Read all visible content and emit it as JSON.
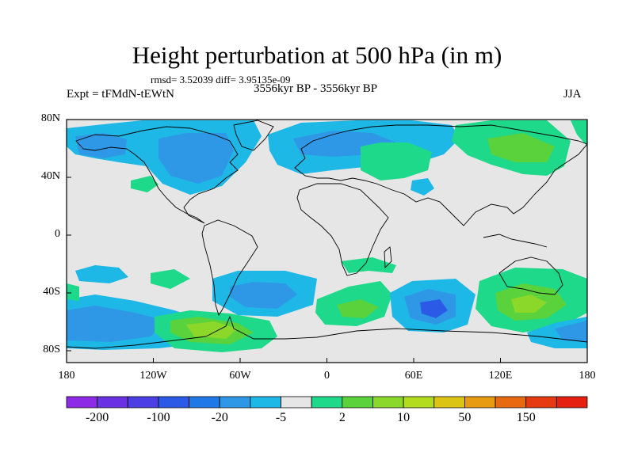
{
  "title": "Height perturbation at 500 hPa (in m)",
  "stats": "rmsd= 3.52039 diff= 3.95135e-09",
  "experiment": "Expt = tFMdN-tEWtN",
  "period": "3556kyr BP - 3556kyr BP",
  "season": "JJA",
  "lat_ticks": [
    "80N",
    "40N",
    "0",
    "40S",
    "80S"
  ],
  "lon_ticks": [
    "180",
    "120W",
    "60W",
    "0",
    "60E",
    "120E",
    "180"
  ],
  "colorbar": {
    "colors": [
      "#8c2ae6",
      "#6a30e4",
      "#4a3ee4",
      "#2b5be6",
      "#1f78e8",
      "#2f98e6",
      "#1eb8e6",
      "#e6e6e6",
      "#1ed98a",
      "#5ad23c",
      "#8cd82a",
      "#b4dc1e",
      "#dcc414",
      "#e89a10",
      "#e86a10",
      "#e63b10",
      "#e62010"
    ],
    "labels": [
      "-200",
      "-100",
      "-20",
      "-5",
      "2",
      "10",
      "50",
      "150"
    ]
  },
  "palette": {
    "background": "#e6e6e6",
    "strong_negative": "#1f78e8",
    "negative": "#2f98e6",
    "weak_negative": "#1eb8e6",
    "weak_positive": "#1ed98a",
    "positive": "#5ad23c",
    "strong_positive": "#8cd82a",
    "peak_positive": "#b4dc1e",
    "deep_negative": "#2b5be6"
  }
}
